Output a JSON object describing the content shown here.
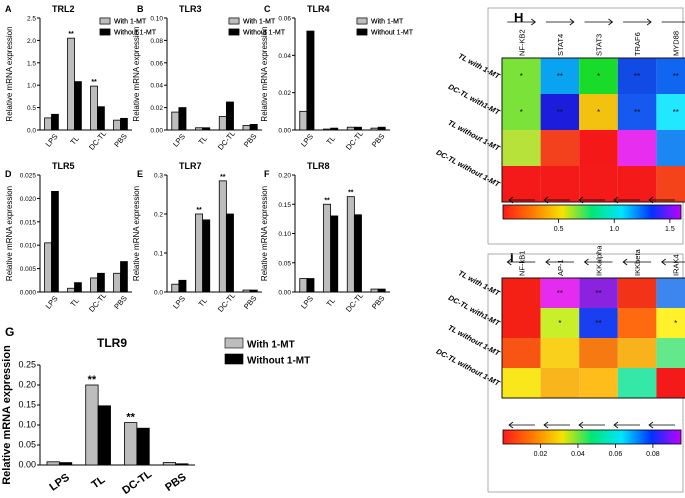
{
  "chart_data": [
    {
      "panel": "A",
      "title": "TRL2",
      "type": "bar",
      "categories": [
        "LPS",
        "TL",
        "DC-TL",
        "PBS"
      ],
      "series": [
        {
          "name": "With 1-MT",
          "values": [
            0.27,
            2.05,
            0.98,
            0.22
          ]
        },
        {
          "name": "Without 1-MT",
          "values": [
            0.35,
            1.08,
            0.52,
            0.26
          ]
        }
      ],
      "ylabel": "Relative mRNA expression",
      "ylim": [
        0,
        2.5
      ],
      "yticks": [
        "0.0",
        "0.5",
        "1.0",
        "1.5",
        "2.0",
        "2.5"
      ],
      "annotations": [
        {
          "category": "TL",
          "series": 0,
          "text": "**"
        },
        {
          "category": "DC-TL",
          "series": 0,
          "text": "**"
        }
      ]
    },
    {
      "panel": "B",
      "title": "TLR3",
      "type": "bar",
      "categories": [
        "LPS",
        "TL",
        "DC-TL",
        "PBS"
      ],
      "series": [
        {
          "name": "With 1-MT",
          "values": [
            0.016,
            0.002,
            0.012,
            0.004
          ]
        },
        {
          "name": "Without 1-MT",
          "values": [
            0.02,
            0.002,
            0.025,
            0.005
          ]
        }
      ],
      "ylabel": "Relative mRNA expression",
      "ylim": [
        0,
        0.1
      ],
      "yticks": [
        "0.00",
        "0.02",
        "0.04",
        "0.06",
        "0.08",
        "0.10"
      ],
      "annotations": []
    },
    {
      "panel": "C",
      "title": "TLR4",
      "type": "bar",
      "categories": [
        "LPS",
        "TL",
        "DC-TL",
        "PBS"
      ],
      "series": [
        {
          "name": "With 1-MT",
          "values": [
            0.01,
            0.0005,
            0.0015,
            0.001
          ]
        },
        {
          "name": "Without 1-MT",
          "values": [
            0.053,
            0.001,
            0.0015,
            0.0015
          ]
        }
      ],
      "ylabel": "Relative mRNA expression",
      "ylim": [
        0,
        0.06
      ],
      "yticks": [
        "0.00",
        "0.02",
        "0.04",
        "0.06"
      ],
      "annotations": []
    },
    {
      "panel": "D",
      "title": "TLR5",
      "type": "bar",
      "categories": [
        "LPS",
        "TL",
        "DC-TL",
        "PBS"
      ],
      "series": [
        {
          "name": "With 1-MT",
          "values": [
            0.0105,
            0.0008,
            0.003,
            0.004
          ]
        },
        {
          "name": "Without 1-MT",
          "values": [
            0.0215,
            0.002,
            0.004,
            0.0065
          ]
        }
      ],
      "ylabel": "Relative mRNA expression",
      "ylim": [
        0,
        0.025
      ],
      "yticks": [
        "0.000",
        "0.005",
        "0.010",
        "0.015",
        "0.020",
        "0.025"
      ],
      "annotations": []
    },
    {
      "panel": "E",
      "title": "TLR7",
      "type": "bar",
      "categories": [
        "LPS",
        "TL",
        "DC-TL",
        "PBS"
      ],
      "series": [
        {
          "name": "With 1-MT",
          "values": [
            0.02,
            0.2,
            0.285,
            0.005
          ]
        },
        {
          "name": "Without 1-MT",
          "values": [
            0.03,
            0.185,
            0.2,
            0.005
          ]
        }
      ],
      "ylabel": "Relative mRNA expression",
      "ylim": [
        0,
        0.3
      ],
      "yticks": [
        "0.0",
        "0.1",
        "0.2",
        "0.3"
      ],
      "annotations": [
        {
          "category": "TL",
          "series": 0,
          "text": "**"
        },
        {
          "category": "DC-TL",
          "series": 0,
          "text": "**"
        }
      ]
    },
    {
      "panel": "F",
      "title": "TLR8",
      "type": "bar",
      "categories": [
        "LPS",
        "TL",
        "DC-TL",
        "PBS"
      ],
      "series": [
        {
          "name": "With 1-MT",
          "values": [
            0.023,
            0.15,
            0.163,
            0.005
          ]
        },
        {
          "name": "Without 1-MT",
          "values": [
            0.023,
            0.13,
            0.132,
            0.005
          ]
        }
      ],
      "ylabel": "Relative mRNA expression",
      "ylim": [
        0,
        0.2
      ],
      "yticks": [
        "0.00",
        "0.05",
        "0.10",
        "0.15",
        "0.20"
      ],
      "annotations": [
        {
          "category": "TL",
          "series": 0,
          "text": "**"
        },
        {
          "category": "DC-TL",
          "series": 0,
          "text": "**"
        }
      ]
    },
    {
      "panel": "G",
      "title": "TLR9",
      "type": "bar",
      "categories": [
        "LPS",
        "TL",
        "DC-TL",
        "PBS"
      ],
      "series": [
        {
          "name": "With 1-MT",
          "values": [
            0.008,
            0.2,
            0.106,
            0.006
          ]
        },
        {
          "name": "Without 1-MT",
          "values": [
            0.006,
            0.148,
            0.092,
            0.003
          ]
        }
      ],
      "ylabel": "Relative mRNA expression",
      "ylim": [
        0,
        0.25
      ],
      "yticks": [
        "0.00",
        "0.05",
        "0.10",
        "0.15",
        "0.20",
        "0.25"
      ],
      "annotations": [
        {
          "category": "TL",
          "series": 0,
          "text": "**"
        },
        {
          "category": "DC-TL",
          "series": 0,
          "text": "**"
        }
      ]
    },
    {
      "panel": "H",
      "type": "heatmap",
      "columns": [
        "NF-KB2",
        "STAT4",
        "STAT3",
        "TRAF6",
        "MYD88"
      ],
      "rows": [
        "TL with 1-MT",
        "DC-TL with1-MT",
        "TL without 1-MT",
        "DC-TL without 1-MT"
      ],
      "colors": [
        [
          "#7be23a",
          "#0aa3f2",
          "#19dc2a",
          "#124ae6",
          "#1066f0"
        ],
        [
          "#7be23a",
          "#1c1cdc",
          "#f3c10f",
          "#1659f0",
          "#22e8ff"
        ],
        [
          "#b6e23a",
          "#f2411c",
          "#f41818",
          "#e72df0",
          "#1b87f2"
        ],
        [
          "#f51a1a",
          "#f51a1a",
          "#f51a1a",
          "#f51a1a",
          "#f4421b"
        ]
      ],
      "marks": [
        [
          "*",
          "**",
          "*",
          "**",
          "**"
        ],
        [
          "*",
          "**",
          "*",
          "**",
          "**"
        ],
        [
          "",
          "",
          "",
          "",
          ""
        ],
        [
          "",
          "",
          "",
          "",
          ""
        ]
      ],
      "colorbar_ticks": [
        "0.5",
        "1.0",
        "1.5"
      ],
      "colorbar_range": [
        0,
        1.6
      ],
      "colorbar_stops": [
        "#ff1a1a",
        "#ff7a00",
        "#f5e400",
        "#00e676",
        "#00e5ff",
        "#0033ff",
        "#c000ff"
      ]
    },
    {
      "panel": "I",
      "type": "heatmap",
      "columns": [
        "NF-kB1",
        "AP-1",
        "IKKalpha",
        "IKKbeta",
        "IRAK4"
      ],
      "rows": [
        "TL with 1-MT",
        "DC-TL with1-MT",
        "TL without 1-MT",
        "DC-TL without 1-MT"
      ],
      "colors": [
        [
          "#f52015",
          "#e52bf0",
          "#8a22e0",
          "#f23318",
          "#3d86f0"
        ],
        [
          "#f52015",
          "#c9ef2a",
          "#1a3ff0",
          "#ff6a10",
          "#fff12a"
        ],
        [
          "#f85515",
          "#f9d11c",
          "#f67a12",
          "#f7b21c",
          "#63e88c"
        ],
        [
          "#f9e71c",
          "#f9b51c",
          "#ffbd1c",
          "#35e8a8",
          "#f51a1a"
        ]
      ],
      "marks": [
        [
          "",
          "**",
          "**",
          "",
          ""
        ],
        [
          "",
          "*",
          "**",
          "",
          "*"
        ],
        [
          "",
          "",
          "",
          "",
          ""
        ],
        [
          "",
          "",
          "",
          "",
          ""
        ]
      ],
      "colorbar_ticks": [
        "0.02",
        "0.04",
        "0.06",
        "0.08"
      ],
      "colorbar_range": [
        0,
        0.095
      ],
      "colorbar_stops": [
        "#ff1a1a",
        "#ff7a00",
        "#f5e400",
        "#00e676",
        "#00e5ff",
        "#0033ff",
        "#c000ff"
      ]
    }
  ],
  "style": {
    "with_color": "#bdbdbd",
    "without_color": "#000000"
  }
}
